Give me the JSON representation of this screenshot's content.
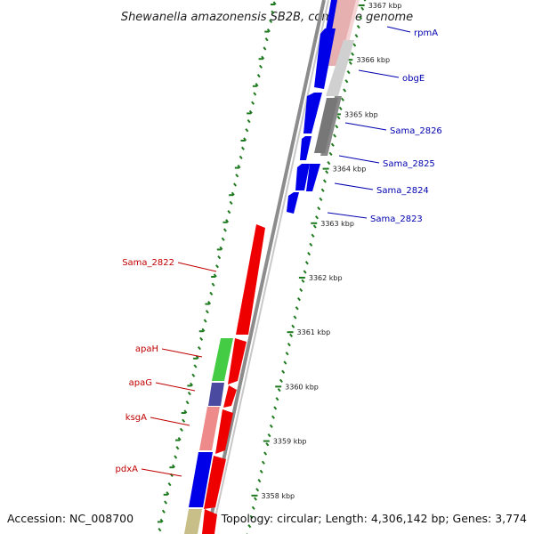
{
  "title": "Shewanella amazonensis SB2B, complete genome",
  "footer": {
    "accession": "Accession: NC_008700",
    "summary": "Topology: circular; Length: 4,306,142 bp; Genes: 3,774"
  },
  "colors": {
    "backbone": "#8c8c8c",
    "tick": "#1f7a1f",
    "forward_label": "#0000b0",
    "reverse_label": "#c00000"
  },
  "ticks": [
    {
      "label": "3367 kbp",
      "kbp": 3367
    },
    {
      "label": "3366 kbp",
      "kbp": 3366
    },
    {
      "label": "3365 kbp",
      "kbp": 3365
    },
    {
      "label": "3364 kbp",
      "kbp": 3364
    },
    {
      "label": "3363 kbp",
      "kbp": 3363
    },
    {
      "label": "3362 kbp",
      "kbp": 3362
    },
    {
      "label": "3361 kbp",
      "kbp": 3361
    },
    {
      "label": "3360 kbp",
      "kbp": 3360
    },
    {
      "label": "3359 kbp",
      "kbp": 3359
    },
    {
      "label": "3358 kbp",
      "kbp": 3358
    }
  ],
  "genes_forward": [
    {
      "name": "rpmA",
      "color": "#0000e8"
    },
    {
      "name": "obgE",
      "color": "#0000e8"
    },
    {
      "name": "Sama_2826",
      "color": "#0000e8"
    },
    {
      "name": "Sama_2825",
      "color": "#0000e8"
    },
    {
      "name": "Sama_2824",
      "color": "#0000e8"
    },
    {
      "name": "Sama_2823",
      "color": "#0000e8"
    }
  ],
  "genes_reverse": [
    {
      "name": "Sama_2822",
      "color": "#ee0000"
    },
    {
      "name": "apaH",
      "color": "#ee0000"
    },
    {
      "name": "apaG",
      "color": "#ee0000"
    },
    {
      "name": "ksgA",
      "color": "#ee0000"
    },
    {
      "name": "pdxA",
      "color": "#ee0000"
    }
  ]
}
